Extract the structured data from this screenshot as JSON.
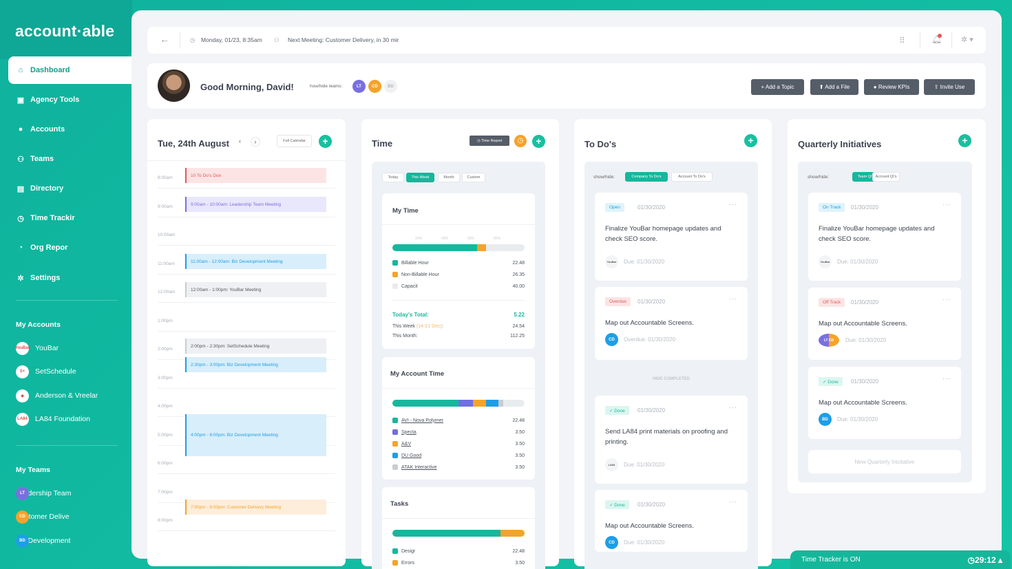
{
  "app": {
    "logo": "account·able"
  },
  "sidebar": {
    "nav": [
      {
        "label": "Dashboard",
        "icon": "home-icon",
        "glyph": "⌂"
      },
      {
        "label": "Agency Tools",
        "icon": "briefcase-icon",
        "glyph": "▣"
      },
      {
        "label": "Accounts",
        "icon": "info-icon",
        "glyph": "●"
      },
      {
        "label": "Teams",
        "icon": "users-icon",
        "glyph": "⚇"
      },
      {
        "label": "Directory",
        "icon": "contact-book-icon",
        "glyph": "▤"
      },
      {
        "label": "Time Trackir",
        "icon": "clock-icon",
        "glyph": "◷"
      },
      {
        "label": "Org Repor",
        "icon": "pie-chart-icon",
        "glyph": "◔"
      },
      {
        "label": "Settings",
        "icon": "gear-icon",
        "glyph": "✲"
      }
    ],
    "accounts_header": "My Accounts",
    "accounts": [
      {
        "label": "YouBar",
        "logo": "YouBar"
      },
      {
        "label": "SetSchedule",
        "logo": "S+"
      },
      {
        "label": "Anderson & Vreelar",
        "logo": "◆"
      },
      {
        "label": "LA84 Foundation",
        "logo": "LA84"
      }
    ],
    "teams_header": "My Teams",
    "teams": [
      {
        "label": "Leadership Team",
        "initials": "LT",
        "color": "#7a6fe0"
      },
      {
        "label": "Customer Delive",
        "initials": "CD",
        "color": "#f5a32a"
      },
      {
        "label": "Biz Development",
        "initials": "BD",
        "color": "#1e9ee6"
      }
    ]
  },
  "topbar": {
    "datetime": "Monday, 01/23, 8:35am",
    "meeting": "Next Meeting: Customer Delivery, in 30 mir"
  },
  "greeting": {
    "text": "Good Morning, David!",
    "show_teams": "how/hide teams:",
    "badges": [
      {
        "initials": "LT",
        "color": "#7a6fe0"
      },
      {
        "initials": "CD",
        "color": "#f5a32a"
      },
      {
        "initials": "BD",
        "color": "#f0f1f3"
      }
    ],
    "buttons": [
      "+ Add a Topic",
      "⬆ Add a File",
      "● Review KPIs",
      "⇧ Invite Use"
    ]
  },
  "calendar": {
    "title": "Tue, 24th August",
    "full_calendar": "Full Calendar",
    "hours": [
      "8:00am",
      "9:00am",
      "10:00am",
      "11:00am",
      "12:00am",
      "1:00pm",
      "2:00pm",
      "3:00pm",
      "4:00pm",
      "5:00pm",
      "6:00pm",
      "7:00pm",
      "8:00pm"
    ],
    "events": [
      {
        "label": "10 To Do's Due",
        "color": "#e0575b",
        "bg": "#fde4e4",
        "text": "#e0575b"
      },
      {
        "label": "9:00am - 10:00am: Leadership Team Meeting",
        "color": "#7a6fe0",
        "bg": "#e8e7fb",
        "text": "#7a6fe0"
      },
      {
        "label": "11:00am - 12:00am: Biz Development Meeting",
        "color": "#1e9ee6",
        "bg": "#d8eefb",
        "text": "#1e9ee6"
      },
      {
        "label": "12:00am - 1:00pm: YouBar Meeting",
        "color": "#c9ccd1",
        "bg": "#eef0f3",
        "text": "#555"
      },
      {
        "label": "2:00pm - 2:30pm: SetSchedule Meeting",
        "color": "#c9ccd1",
        "bg": "#eef0f3",
        "text": "#555"
      },
      {
        "label": "2:30pm - 3:00pm: Biz Development Meeting",
        "color": "#1e9ee6",
        "bg": "#d8eefb",
        "text": "#1e9ee6"
      },
      {
        "label": "4:00pm - 6:00pm: Biz Development Meeting",
        "color": "#1e9ee6",
        "bg": "#d8eefb",
        "text": "#1e9ee6"
      },
      {
        "label": "7:00pm - 8:00pm: Customer Delivery Meeting",
        "color": "#f5a32a",
        "bg": "#fdeedb",
        "text": "#f5a32a"
      }
    ]
  },
  "time": {
    "title": "Time",
    "report_btn": "◷ Time Report",
    "filters": [
      {
        "label": "Today"
      },
      {
        "label": "This Week",
        "active": true
      },
      {
        "label": "Month"
      },
      {
        "label": "Custom"
      }
    ],
    "my_time": {
      "title": "My Time",
      "ticks": [
        "20%",
        "40%",
        "60%",
        "80%"
      ],
      "progress": {
        "billable": 0.64,
        "nonbillable": 0.07
      },
      "rows": [
        {
          "label": "Billable Hour",
          "value": "22.48",
          "color": "#16b79c"
        },
        {
          "label": "Non-Billable Hour",
          "value": "26.35",
          "color": "#f5a32a"
        },
        {
          "label": "Capacit",
          "value": "40.00",
          "color": "#e9ecef"
        }
      ],
      "today_label": "Today's Total:",
      "today_value": "5.22",
      "week_label": "This Week",
      "week_range": "(14-21 Dec)",
      "week_value": "24.54",
      "month_label": "This Month:",
      "month_value": "112.25"
    },
    "account_time": {
      "title": "My Account Time",
      "rows": [
        {
          "label": "AVI - Nova Polymer",
          "value": "22.48",
          "color": "#16b79c",
          "share": 0.5
        },
        {
          "label": "Specta",
          "value": "3.50",
          "color": "#6f6fe0",
          "share": 0.11
        },
        {
          "label": "A&V",
          "value": "3.50",
          "color": "#f5a32a",
          "share": 0.1
        },
        {
          "label": "DU Good",
          "value": "3.50",
          "color": "#1e9ee6",
          "share": 0.09
        },
        {
          "label": "ATAK Interactive",
          "value": "3.50",
          "color": "#c9ccd1",
          "share": 0.04
        }
      ]
    },
    "tasks": {
      "title": "Tasks",
      "progress": {
        "design": 0.82,
        "errors": 0.18
      },
      "rows": [
        {
          "label": "Desigr",
          "value": "22.48",
          "color": "#16b79c"
        },
        {
          "label": "Errors",
          "value": "3.50",
          "color": "#f5a32a"
        }
      ]
    }
  },
  "todos": {
    "title": "To Do's",
    "show_hide": "show/hide:",
    "filters": [
      {
        "label": "Company To Do's",
        "active": true
      },
      {
        "label": "Account To Do's"
      }
    ],
    "hide_completed": "HIDE COMPLETED",
    "items": [
      {
        "status": "Open",
        "status_color": "#16a3e0",
        "status_bg": "#dff3fc",
        "date": "01/30/2020",
        "title": "Finalize YouBar homepage updates and check SEO score.",
        "due": "Due: 01/30/2020",
        "avatar": "YouBar",
        "avatar_color": "#ffffff"
      },
      {
        "status": "Overdue",
        "status_color": "#e0575b",
        "status_bg": "#fde4e4",
        "date": "01/30/2020",
        "title": "Map out Accountable Screens.",
        "due": "Overdue: 01/30/2020",
        "avatar": "CD",
        "avatar_color": "#1e9ee6"
      },
      {
        "status": "✓ Done",
        "status_color": "#16b79c",
        "status_bg": "#dcf6ef",
        "date": "01/30/2020",
        "title": "Send LA84 print materials on proofing and printing.",
        "due": "Due: 01/30/2020",
        "avatar": "LA84",
        "avatar_color": "#ffffff"
      },
      {
        "status": "✓ Done",
        "status_color": "#16b79c",
        "status_bg": "#dcf6ef",
        "date": "01/30/2020",
        "title": "Map out Accountable Screens.",
        "due": "Due: 01/30/2020",
        "avatar": "CD",
        "avatar_color": "#1e9ee6"
      }
    ]
  },
  "qi": {
    "title": "Quarterly Initiatives",
    "show_hide": "show/hide:",
    "filters": [
      {
        "label": "Team QI's",
        "active": true
      },
      {
        "label": "Account QI's"
      }
    ],
    "items": [
      {
        "status": "On Track",
        "status_color": "#16a3e0",
        "status_bg": "#dff3fc",
        "date": "01/30/2020",
        "title": "Finalize YouBar homepage updates and check SEO score.",
        "due": "Due: 01/30/2020",
        "avatar": "YouBar"
      },
      {
        "status": "Off Track",
        "status_color": "#e0575b",
        "status_bg": "#fde4e4",
        "date": "01/30/2020",
        "title": "Map out Accountable Screens.",
        "due": "Due: 01/30/2020",
        "avatar": "LT CD"
      },
      {
        "status": "✓ Done",
        "status_color": "#16b79c",
        "status_bg": "#dcf6ef",
        "date": "01/30/2020",
        "title": "Map out Accountable Screens.",
        "due": "Due: 01/30/2020",
        "avatar": "BD"
      }
    ],
    "new_label": "New Quarterly Inicitative"
  },
  "tracker": {
    "label": "Time Tracker is ON",
    "time": "◷29:12 ▴"
  }
}
